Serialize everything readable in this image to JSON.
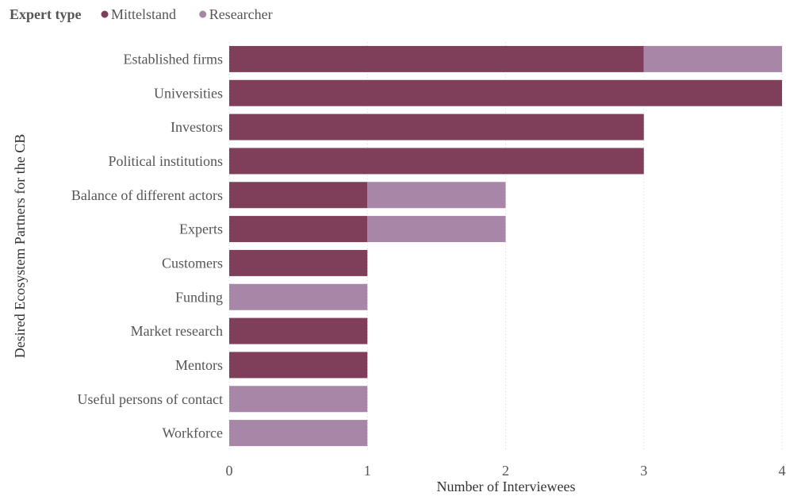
{
  "chart_data": {
    "type": "bar",
    "orientation": "horizontal",
    "stacked": true,
    "legend": {
      "title": "Expert type",
      "placement": "top-left"
    },
    "categories": [
      "Established firms",
      "Universities",
      "Investors",
      "Political institutions",
      "Balance of different actors",
      "Experts",
      "Customers",
      "Funding",
      "Market research",
      "Mentors",
      "Useful persons of contact",
      "Workforce"
    ],
    "series": [
      {
        "name": "Mittelstand",
        "color": "#7f3f5a",
        "values": [
          3,
          4,
          3,
          3,
          1,
          1,
          1,
          0,
          1,
          1,
          0,
          0
        ]
      },
      {
        "name": "Researcher",
        "color": "#a886a8",
        "values": [
          1,
          0,
          0,
          0,
          1,
          1,
          0,
          1,
          0,
          0,
          1,
          1
        ]
      }
    ],
    "xlabel": "Number of Interviewees",
    "ylabel": "Desired Ecosystem Partners for the CB",
    "xlim": [
      0,
      4
    ],
    "xticks": [
      0,
      1,
      2,
      3,
      4
    ],
    "grid": "vertical dotted"
  }
}
